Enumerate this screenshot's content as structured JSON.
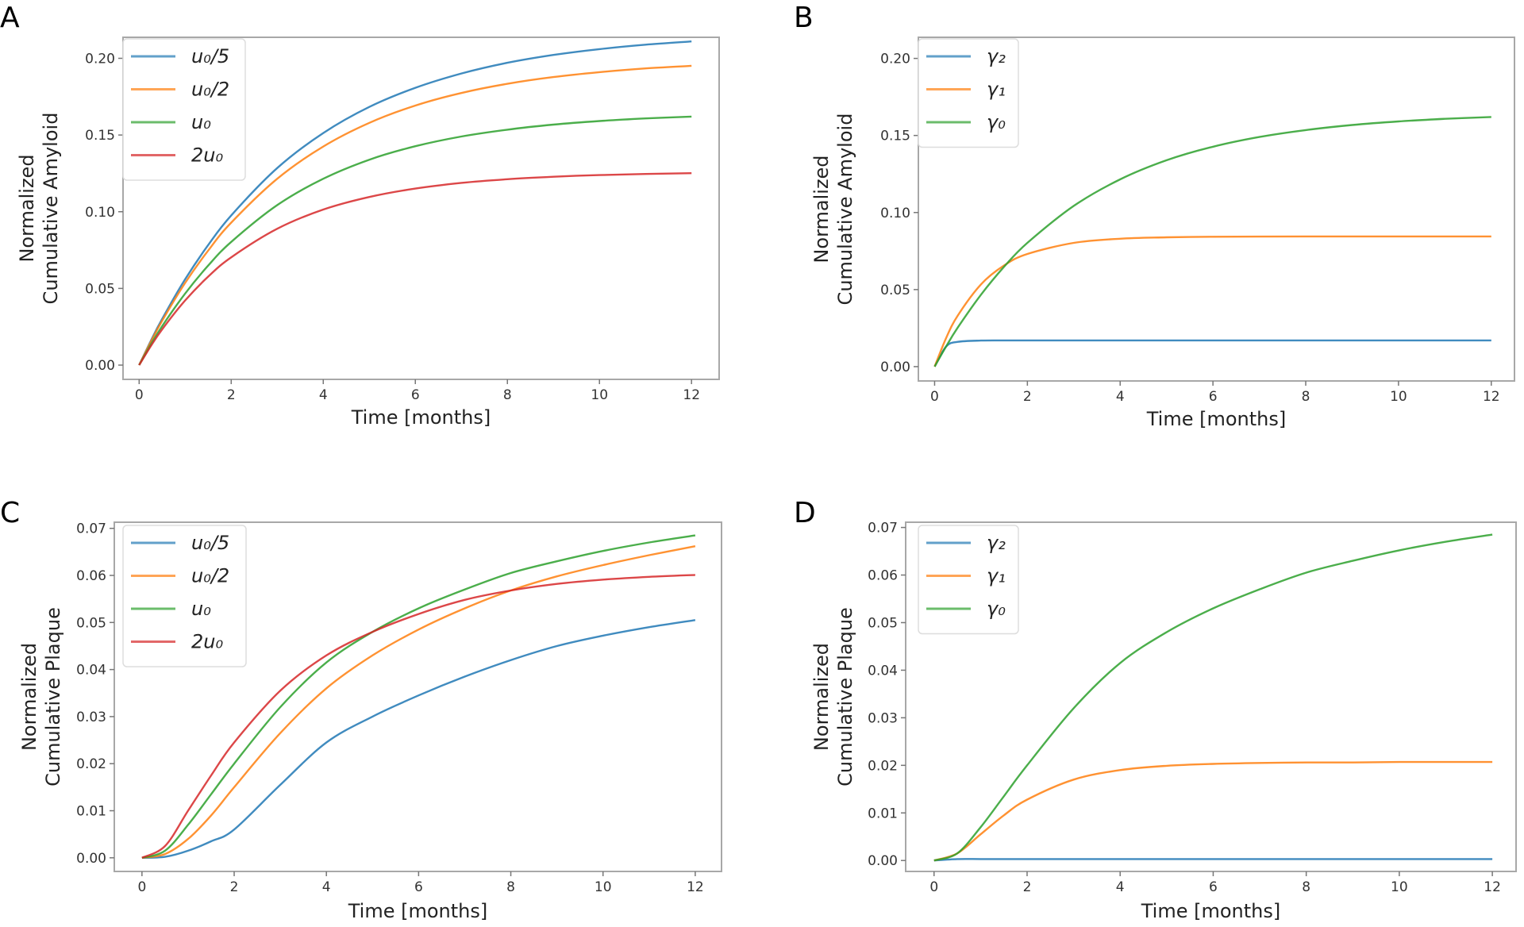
{
  "chart_data": [
    {
      "panel": "A",
      "type": "line",
      "xlabel": "Time [months]",
      "ylabel": [
        "Normalized",
        "Cumulative Amyloid"
      ],
      "xlim": [
        -0.35,
        12.6
      ],
      "ylim": [
        -0.0093,
        0.2137
      ],
      "xticks": [
        0,
        2,
        4,
        6,
        8,
        10,
        12
      ],
      "xtick_labels": [
        "0",
        "2",
        "4",
        "6",
        "8",
        "10",
        "12"
      ],
      "yticks": [
        0,
        0.05,
        0.1,
        0.15,
        0.2
      ],
      "ytick_labels": [
        "0.00",
        "0.05",
        "0.10",
        "0.15",
        "0.20"
      ],
      "legend": "upper-left",
      "grid": false,
      "x": [
        0,
        0.25,
        0.5,
        1,
        1.5,
        2,
        3,
        4,
        5,
        6,
        7,
        8,
        9,
        10,
        11,
        12
      ],
      "series": [
        {
          "name": "u₀/5",
          "color": "#1f77b4",
          "values": [
            0,
            0.0156,
            0.0301,
            0.056,
            0.0783,
            0.0976,
            0.1285,
            0.1513,
            0.1683,
            0.1808,
            0.1901,
            0.1971,
            0.2022,
            0.206,
            0.2089,
            0.211
          ]
        },
        {
          "name": "u₀/2",
          "color": "#ff7f0e",
          "values": [
            0,
            0.015,
            0.0289,
            0.0536,
            0.0747,
            0.0929,
            0.1215,
            0.1425,
            0.1579,
            0.1692,
            0.1774,
            0.1834,
            0.1878,
            0.191,
            0.1934,
            0.1951
          ]
        },
        {
          "name": "u₀",
          "color": "#2ca02c",
          "values": [
            0,
            0.0132,
            0.0254,
            0.0467,
            0.0649,
            0.0803,
            0.1043,
            0.1215,
            0.1339,
            0.1427,
            0.149,
            0.1535,
            0.1568,
            0.1591,
            0.1608,
            0.162
          ]
        },
        {
          "name": "2u₀",
          "color": "#d62728",
          "values": [
            0,
            0.0122,
            0.0233,
            0.0422,
            0.0577,
            0.0703,
            0.0889,
            0.1014,
            0.1096,
            0.1151,
            0.1188,
            0.1212,
            0.1228,
            0.1239,
            0.1246,
            0.1251
          ]
        }
      ]
    },
    {
      "panel": "B",
      "type": "line",
      "xlabel": "Time [months]",
      "ylabel": [
        "Normalized",
        "Cumulative Amyloid"
      ],
      "xlim": [
        -0.35,
        12.5
      ],
      "ylim": [
        -0.0093,
        0.2137
      ],
      "xticks": [
        0,
        2,
        4,
        6,
        8,
        10,
        12
      ],
      "xtick_labels": [
        "0",
        "2",
        "4",
        "6",
        "8",
        "10",
        "12"
      ],
      "yticks": [
        0,
        0.05,
        0.1,
        0.15,
        0.2
      ],
      "ytick_labels": [
        "0.00",
        "0.05",
        "0.10",
        "0.15",
        "0.20"
      ],
      "legend": "upper-left",
      "grid": false,
      "x": [
        0,
        0.25,
        0.5,
        1,
        1.5,
        2,
        3,
        4,
        5,
        6,
        7,
        8,
        9,
        10,
        11,
        12
      ],
      "series": [
        {
          "name": "γ₂",
          "color": "#1f77b4",
          "values": [
            0,
            0.0131,
            0.0161,
            0.0169,
            0.017,
            0.017,
            0.017,
            0.017,
            0.017,
            0.017,
            0.017,
            0.017,
            0.017,
            0.017,
            0.017,
            0.017
          ]
        },
        {
          "name": "γ₁",
          "color": "#ff7f0e",
          "values": [
            0,
            0.0187,
            0.0332,
            0.0534,
            0.0657,
            0.0731,
            0.0803,
            0.083,
            0.0839,
            0.0843,
            0.0844,
            0.0845,
            0.0845,
            0.0845,
            0.0845,
            0.0845
          ]
        },
        {
          "name": "γ₀",
          "color": "#2ca02c",
          "values": [
            0,
            0.0132,
            0.0254,
            0.0467,
            0.0649,
            0.0803,
            0.1043,
            0.1215,
            0.1339,
            0.1427,
            0.149,
            0.1535,
            0.1568,
            0.1591,
            0.1608,
            0.162
          ]
        }
      ]
    },
    {
      "panel": "C",
      "type": "line",
      "xlabel": "Time [months]",
      "ylabel": [
        "Normalized",
        "Cumulative Plaque"
      ],
      "xlim": [
        -0.6,
        12.57
      ],
      "ylim": [
        -0.0029,
        0.0713
      ],
      "xticks": [
        0,
        2,
        4,
        6,
        8,
        10,
        12
      ],
      "xtick_labels": [
        "0",
        "2",
        "4",
        "6",
        "8",
        "10",
        "12"
      ],
      "yticks": [
        0,
        0.01,
        0.02,
        0.03,
        0.04,
        0.05,
        0.06,
        0.07
      ],
      "ytick_labels": [
        "0.00",
        "0.01",
        "0.02",
        "0.03",
        "0.04",
        "0.05",
        "0.06",
        "0.07"
      ],
      "legend": "upper-left",
      "grid": false,
      "x": [
        0,
        0.5,
        1,
        1.5,
        2,
        3,
        4,
        5,
        6,
        7,
        8,
        9,
        10,
        11,
        12
      ],
      "series": [
        {
          "name": "u₀/5",
          "color": "#1f77b4",
          "values": [
            0,
            0.0002,
            0.0015,
            0.0035,
            0.006,
            0.0155,
            0.0245,
            0.03,
            0.0345,
            0.0385,
            0.042,
            0.045,
            0.0472,
            0.049,
            0.0505
          ]
        },
        {
          "name": "u₀/2",
          "color": "#ff7f0e",
          "values": [
            0,
            0.0008,
            0.004,
            0.009,
            0.015,
            0.0265,
            0.036,
            0.043,
            0.0485,
            0.053,
            0.0568,
            0.0598,
            0.0622,
            0.0643,
            0.0662
          ]
        },
        {
          "name": "u₀",
          "color": "#2ca02c",
          "values": [
            0,
            0.0015,
            0.007,
            0.0135,
            0.02,
            0.032,
            0.0415,
            0.048,
            0.053,
            0.057,
            0.0605,
            0.063,
            0.0652,
            0.067,
            0.0685
          ]
        },
        {
          "name": "2u₀",
          "color": "#d62728",
          "values": [
            0,
            0.0025,
            0.01,
            0.0175,
            0.0245,
            0.0355,
            0.043,
            0.048,
            0.0518,
            0.0548,
            0.0568,
            0.0582,
            0.0591,
            0.0597,
            0.0601
          ]
        }
      ]
    },
    {
      "panel": "D",
      "type": "line",
      "xlabel": "Time [months]",
      "ylabel": [
        "Normalized",
        "Cumulative Plaque"
      ],
      "xlim": [
        -0.61,
        12.51
      ],
      "ylim": [
        -0.0023,
        0.0711
      ],
      "xticks": [
        0,
        2,
        4,
        6,
        8,
        10,
        12
      ],
      "xtick_labels": [
        "0",
        "2",
        "4",
        "6",
        "8",
        "10",
        "12"
      ],
      "yticks": [
        0,
        0.01,
        0.02,
        0.03,
        0.04,
        0.05,
        0.06,
        0.07
      ],
      "ytick_labels": [
        "0.00",
        "0.01",
        "0.02",
        "0.03",
        "0.04",
        "0.05",
        "0.06",
        "0.07"
      ],
      "legend": "upper-left",
      "grid": false,
      "x": [
        0,
        0.5,
        1,
        1.5,
        2,
        3,
        4,
        5,
        6,
        7,
        8,
        9,
        10,
        11,
        12
      ],
      "series": [
        {
          "name": "γ₂",
          "color": "#1f77b4",
          "values": [
            0,
            0.0003,
            0.0003,
            0.0003,
            0.0003,
            0.0003,
            0.0003,
            0.0003,
            0.0003,
            0.0003,
            0.0003,
            0.0003,
            0.0003,
            0.0003,
            0.0003
          ]
        },
        {
          "name": "γ₁",
          "color": "#ff7f0e",
          "values": [
            0,
            0.0015,
            0.0055,
            0.0095,
            0.0128,
            0.017,
            0.019,
            0.0199,
            0.0203,
            0.0205,
            0.0206,
            0.0206,
            0.0207,
            0.0207,
            0.0207
          ]
        },
        {
          "name": "γ₀",
          "color": "#2ca02c",
          "values": [
            0,
            0.0015,
            0.007,
            0.0135,
            0.02,
            0.032,
            0.0415,
            0.048,
            0.053,
            0.057,
            0.0605,
            0.063,
            0.0652,
            0.067,
            0.0685
          ]
        }
      ]
    }
  ]
}
